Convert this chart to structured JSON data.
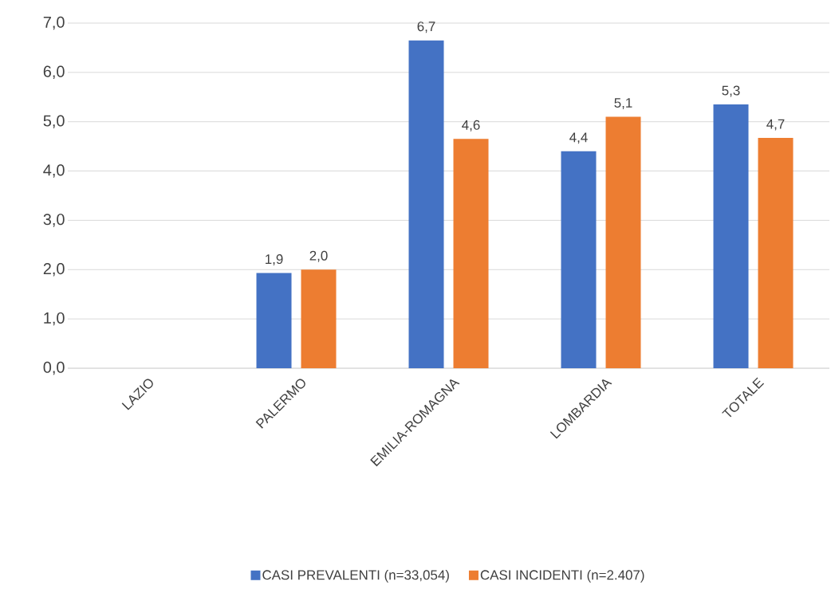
{
  "chart_data": {
    "type": "bar",
    "categories": [
      "LAZIO",
      "PALERMO",
      "EMILIA-ROMAGNA",
      "LOMBARDIA",
      "TOTALE"
    ],
    "series": [
      {
        "name": "CASI PREVALENTI (n=33,054)",
        "color": "#4472c4",
        "values": [
          null,
          1.93,
          6.65,
          4.4,
          5.35
        ],
        "value_labels": [
          null,
          "1,9",
          "6,7",
          "4,4",
          "5,3"
        ]
      },
      {
        "name": "CASI INCIDENTI (n=2.407)",
        "color": "#ed7d31",
        "values": [
          null,
          2.0,
          4.65,
          5.1,
          4.67
        ],
        "value_labels": [
          null,
          "2,0",
          "4,6",
          "5,1",
          "4,7"
        ]
      }
    ],
    "ylim": [
      0,
      7
    ],
    "yticks": [
      {
        "value": 0,
        "label": "0,0"
      },
      {
        "value": 1,
        "label": "1,0"
      },
      {
        "value": 2,
        "label": "2,0"
      },
      {
        "value": 3,
        "label": "3,0"
      },
      {
        "value": 4,
        "label": "4,0"
      },
      {
        "value": 5,
        "label": "5,0"
      },
      {
        "value": 6,
        "label": "6,0"
      },
      {
        "value": 7,
        "label": "7,0"
      }
    ],
    "grid": "y",
    "legend": "bottom"
  }
}
